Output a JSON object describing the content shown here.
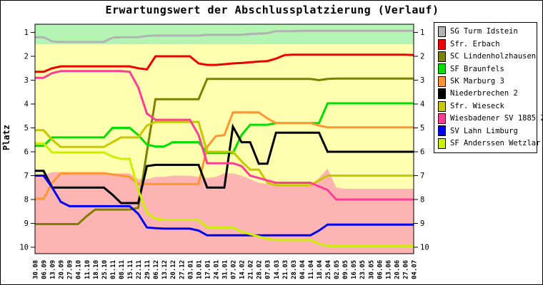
{
  "chart_data": {
    "type": "line",
    "title": "Erwartungswert der Abschlussplatzierung (Verlauf)",
    "xlabel": "",
    "ylabel": "Platz",
    "y_inverted": true,
    "ylim": [
      0.66,
      10.27
    ],
    "y_ticks": [
      1,
      2,
      3,
      4,
      5,
      6,
      7,
      8,
      9,
      10
    ],
    "y_ticks_both_sides": true,
    "grid": false,
    "legend_position": "right",
    "zones": {
      "promotion_color": "#b4f5b4",
      "middle_color": "#ffffb0",
      "relegation_color": "#ffb4b4",
      "promotion_boundary": 1.5
    },
    "relegation_area_boundary": [
      7.0,
      7.0,
      6.85,
      6.85,
      6.85,
      6.85,
      6.85,
      6.85,
      6.85,
      6.9,
      6.9,
      6.9,
      7.15,
      7.15,
      7.05,
      7.05,
      7.0,
      7.0,
      7.0,
      7.05,
      7.1,
      7.05,
      6.9,
      6.9,
      7.0,
      7.15,
      7.3,
      7.35,
      7.4,
      7.4,
      7.4,
      7.4,
      7.4,
      7.1,
      6.7,
      7.5,
      7.55,
      7.55,
      7.55,
      7.55,
      7.55,
      7.55,
      7.55,
      7.55,
      7.55
    ],
    "x_labels": [
      "30.08",
      "06.09",
      "13.09",
      "20.09",
      "27.09",
      "04.10",
      "11.10",
      "18.10",
      "25.10",
      "01.11",
      "08.11",
      "15.11",
      "22.11",
      "29.11",
      "06.12",
      "13.12",
      "20.12",
      "27.12",
      "03.01",
      "10.01",
      "17.01",
      "24.01",
      "31.01",
      "07.02",
      "14.02",
      "21.02",
      "28.02",
      "07.03",
      "14.03",
      "21.03",
      "28.03",
      "04.04",
      "11.04",
      "18.04",
      "25.04",
      "02.05",
      "09.05",
      "16.05",
      "23.05",
      "30.05",
      "06.06",
      "13.06",
      "20.06",
      "27.06",
      "04.07"
    ],
    "series": [
      {
        "name": "SG Turm Idstein",
        "color": "#b2b2b2",
        "values": [
          1.2,
          1.2,
          1.38,
          1.4,
          1.4,
          1.4,
          1.4,
          1.4,
          1.4,
          1.22,
          1.2,
          1.2,
          1.2,
          1.15,
          1.13,
          1.13,
          1.13,
          1.13,
          1.13,
          1.13,
          1.1,
          1.1,
          1.1,
          1.1,
          1.1,
          1.07,
          1.05,
          1.03,
          0.95,
          0.95,
          0.95,
          0.93,
          0.93,
          0.93,
          0.93,
          0.93,
          0.93,
          0.93,
          0.93,
          0.93,
          0.93,
          0.93,
          0.93,
          0.93,
          0.93
        ]
      },
      {
        "name": "Sfr. Erbach",
        "color": "#ee0000",
        "values": [
          2.65,
          2.65,
          2.5,
          2.42,
          2.42,
          2.42,
          2.42,
          2.42,
          2.42,
          2.42,
          2.42,
          2.42,
          2.5,
          2.55,
          2.0,
          2.0,
          2.0,
          2.0,
          2.0,
          2.3,
          2.36,
          2.36,
          2.33,
          2.3,
          2.28,
          2.25,
          2.22,
          2.2,
          2.1,
          1.95,
          1.93,
          1.93,
          1.93,
          1.93,
          1.93,
          1.93,
          1.93,
          1.93,
          1.93,
          1.93,
          1.93,
          1.93,
          1.93,
          1.93,
          1.95
        ]
      },
      {
        "name": "SC Lindenholzhausen",
        "color": "#7f7f00",
        "values": [
          9.03,
          9.03,
          9.03,
          9.03,
          9.03,
          9.03,
          8.7,
          8.42,
          8.42,
          8.42,
          8.42,
          8.42,
          8.35,
          6.0,
          3.8,
          3.8,
          3.8,
          3.8,
          3.8,
          3.8,
          2.95,
          2.95,
          2.95,
          2.95,
          2.95,
          2.95,
          2.95,
          2.95,
          2.95,
          2.95,
          2.95,
          2.95,
          2.95,
          3.0,
          2.95,
          2.93,
          2.93,
          2.93,
          2.93,
          2.93,
          2.93,
          2.93,
          2.93,
          2.93,
          2.93
        ]
      },
      {
        "name": "SF Braunfels",
        "color": "#00e000",
        "values": [
          5.75,
          5.75,
          5.4,
          5.4,
          5.4,
          5.4,
          5.4,
          5.4,
          5.4,
          5.0,
          5.0,
          5.0,
          5.3,
          5.7,
          5.78,
          5.78,
          5.6,
          5.6,
          5.6,
          5.6,
          6.05,
          6.05,
          6.05,
          6.05,
          5.3,
          4.87,
          4.87,
          4.87,
          4.8,
          4.8,
          4.8,
          4.8,
          4.8,
          4.8,
          3.97,
          3.97,
          3.97,
          3.97,
          3.97,
          3.97,
          3.97,
          3.97,
          3.97,
          3.97,
          3.97
        ]
      },
      {
        "name": "SK Marburg 3",
        "color": "#ff9632",
        "values": [
          7.97,
          7.97,
          7.3,
          6.9,
          6.9,
          6.9,
          6.9,
          6.9,
          6.9,
          6.95,
          7.0,
          7.05,
          7.35,
          7.35,
          7.35,
          7.35,
          7.35,
          7.35,
          7.35,
          7.35,
          5.8,
          5.35,
          5.3,
          4.35,
          4.35,
          4.35,
          4.35,
          4.6,
          4.8,
          4.8,
          4.8,
          4.8,
          4.8,
          4.9,
          4.98,
          4.98,
          4.98,
          4.98,
          4.98,
          4.98,
          4.98,
          4.98,
          4.98,
          4.98,
          4.98
        ]
      },
      {
        "name": "Niederbrechen 2",
        "color": "#000000",
        "values": [
          6.8,
          6.8,
          7.5,
          7.5,
          7.5,
          7.5,
          7.5,
          7.5,
          7.5,
          7.8,
          8.15,
          8.15,
          8.15,
          6.6,
          6.55,
          6.55,
          6.55,
          6.55,
          6.55,
          6.55,
          7.5,
          7.5,
          7.5,
          4.95,
          5.6,
          5.6,
          6.5,
          6.5,
          5.2,
          5.2,
          5.2,
          5.2,
          5.2,
          5.2,
          6.0,
          6.0,
          6.0,
          6.0,
          6.0,
          6.0,
          6.0,
          6.0,
          6.0,
          6.0,
          6.0
        ]
      },
      {
        "name": "Sfr. Wieseck",
        "color": "#c8c800",
        "values": [
          5.1,
          5.1,
          5.5,
          5.8,
          5.8,
          5.8,
          5.8,
          5.8,
          5.8,
          5.6,
          5.4,
          5.4,
          5.4,
          4.9,
          4.75,
          4.75,
          4.75,
          4.75,
          4.75,
          4.75,
          6.0,
          6.0,
          6.0,
          6.0,
          6.4,
          6.75,
          6.75,
          7.3,
          7.4,
          7.4,
          7.4,
          7.4,
          7.4,
          7.2,
          7.0,
          7.0,
          7.0,
          7.0,
          7.0,
          7.0,
          7.0,
          7.0,
          7.0,
          7.0,
          7.0
        ]
      },
      {
        "name": "Wiesbadener SV 1885 2",
        "color": "#ff3c96",
        "values": [
          2.9,
          2.9,
          2.7,
          2.62,
          2.62,
          2.62,
          2.62,
          2.62,
          2.62,
          2.62,
          2.62,
          2.65,
          3.3,
          4.4,
          4.66,
          4.66,
          4.66,
          4.66,
          4.66,
          5.3,
          6.48,
          6.48,
          6.48,
          6.48,
          6.6,
          7.0,
          7.1,
          7.2,
          7.3,
          7.3,
          7.3,
          7.3,
          7.3,
          7.45,
          7.6,
          8.0,
          8.0,
          8.0,
          8.0,
          8.0,
          8.0,
          8.0,
          8.0,
          8.0,
          8.0
        ]
      },
      {
        "name": "SV Lahn Limburg",
        "color": "#0000f0",
        "values": [
          7.0,
          7.0,
          7.5,
          8.1,
          8.28,
          8.28,
          8.28,
          8.28,
          8.28,
          8.28,
          8.28,
          8.28,
          8.6,
          9.17,
          9.2,
          9.22,
          9.22,
          9.22,
          9.22,
          9.3,
          9.5,
          9.5,
          9.5,
          9.5,
          9.5,
          9.5,
          9.5,
          9.5,
          9.5,
          9.5,
          9.5,
          9.5,
          9.5,
          9.3,
          9.05,
          9.05,
          9.05,
          9.05,
          9.05,
          9.05,
          9.05,
          9.05,
          9.05,
          9.05,
          9.05
        ]
      },
      {
        "name": "SF Anderssen Wetzlar",
        "color": "#c8f000",
        "values": [
          5.65,
          5.65,
          6.03,
          6.03,
          6.03,
          6.03,
          6.03,
          6.03,
          6.03,
          6.2,
          6.3,
          6.3,
          7.6,
          8.55,
          8.8,
          8.85,
          8.85,
          8.85,
          8.85,
          8.85,
          9.17,
          9.17,
          9.17,
          9.17,
          9.35,
          9.45,
          9.55,
          9.65,
          9.7,
          9.7,
          9.7,
          9.7,
          9.7,
          9.85,
          9.95,
          9.95,
          9.95,
          9.95,
          9.95,
          9.95,
          9.95,
          9.95,
          9.95,
          9.95,
          9.95
        ]
      }
    ]
  }
}
